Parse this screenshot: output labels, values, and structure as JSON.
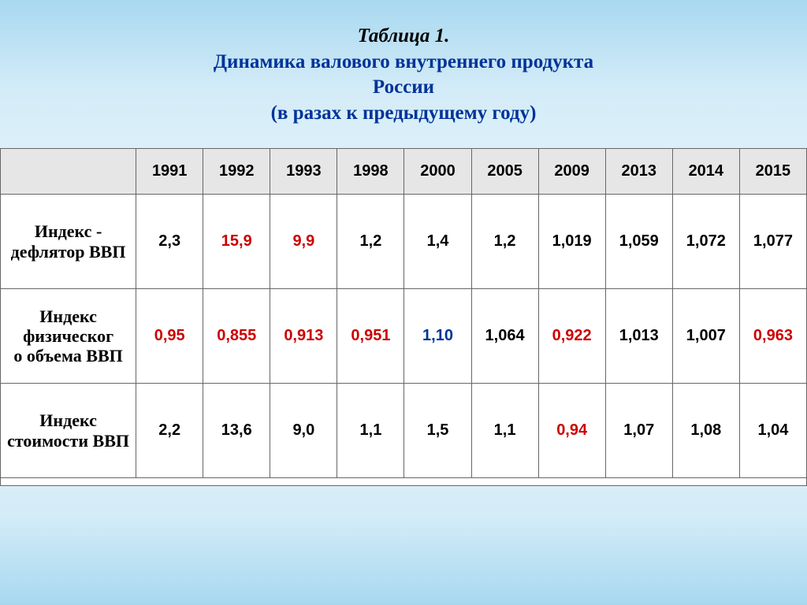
{
  "title": {
    "label": "Таблица 1.",
    "line1": "Динамика валового внутреннего продукта",
    "line2": "России",
    "line3": "(в разах к предыдущему году)"
  },
  "table": {
    "type": "table",
    "header_bg": "#e6e6e6",
    "cell_bg": "#ffffff",
    "border_color": "#666666",
    "text_color_default": "#000000",
    "text_color_red": "#cc0000",
    "text_color_blue": "#003399",
    "header_fontsize": 20,
    "cell_fontsize": 20,
    "rowhead_fontsize": 22,
    "columns": [
      "1991",
      "1992",
      "1993",
      "1998",
      "2000",
      "2005",
      "2009",
      "2013",
      "2014",
      "2015"
    ],
    "rows": [
      {
        "label": "Индекс - дефлятор ВВП",
        "cells": [
          {
            "v": "2,3",
            "c": "default"
          },
          {
            "v": "15,9",
            "c": "red"
          },
          {
            "v": "9,9",
            "c": "red"
          },
          {
            "v": "1,2",
            "c": "default"
          },
          {
            "v": "1,4",
            "c": "default"
          },
          {
            "v": "1,2",
            "c": "default"
          },
          {
            "v": "1,019",
            "c": "default"
          },
          {
            "v": "1,059",
            "c": "default"
          },
          {
            "v": "1,072",
            "c": "default"
          },
          {
            "v": "1,077",
            "c": "default"
          }
        ]
      },
      {
        "label": "Индекс физического объема ВВП",
        "cells": [
          {
            "v": "0,95",
            "c": "red"
          },
          {
            "v": "0,855",
            "c": "red"
          },
          {
            "v": "0,913",
            "c": "red"
          },
          {
            "v": "0,951",
            "c": "red"
          },
          {
            "v": "1,10",
            "c": "blue"
          },
          {
            "v": "1,064",
            "c": "default"
          },
          {
            "v": "0,922",
            "c": "red"
          },
          {
            "v": "1,013",
            "c": "default"
          },
          {
            "v": "1,007",
            "c": "default"
          },
          {
            "v": "0,963",
            "c": "red"
          }
        ]
      },
      {
        "label": "Индекс стоимости ВВП",
        "cells": [
          {
            "v": "2,2",
            "c": "default"
          },
          {
            "v": "13,6",
            "c": "default"
          },
          {
            "v": "9,0",
            "c": "default"
          },
          {
            "v": "1,1",
            "c": "default"
          },
          {
            "v": "1,5",
            "c": "default"
          },
          {
            "v": "1,1",
            "c": "default"
          },
          {
            "v": "0,94",
            "c": "red"
          },
          {
            "v": "1,07",
            "c": "default"
          },
          {
            "v": "1,08",
            "c": "default"
          },
          {
            "v": "1,04",
            "c": "default"
          }
        ]
      }
    ]
  },
  "background_gradient": [
    "#a8d8f0",
    "#d4ecf8",
    "#eef8fd",
    "#d4ecf8",
    "#a8d8f0"
  ]
}
